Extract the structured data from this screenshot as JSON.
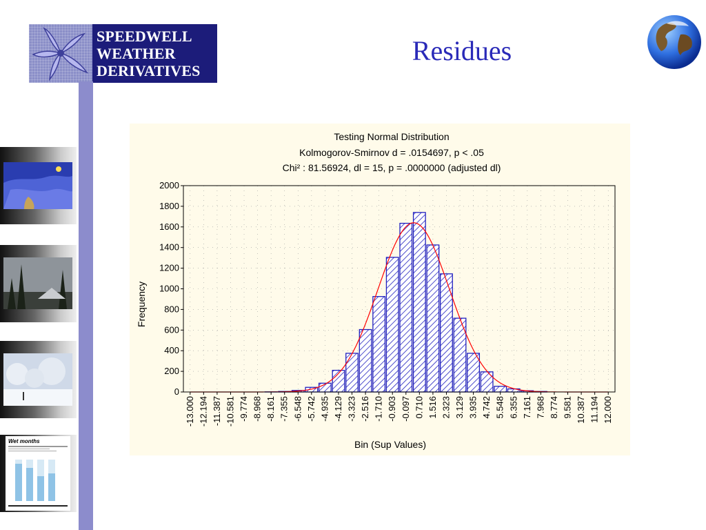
{
  "logo": {
    "lines": [
      "SPEEDWELL",
      "WEATHER",
      "DERIVATIVES"
    ]
  },
  "slide": {
    "title": "Residues"
  },
  "sidebar": {
    "thumbnails": [
      {
        "name": "weather-map"
      },
      {
        "name": "forest-clouds"
      },
      {
        "name": "snowy-trees"
      },
      {
        "name": "wet-months-chart",
        "caption": "Wet months"
      }
    ]
  },
  "chart_data": {
    "type": "bar",
    "title_lines": [
      "Testing Normal Distribution",
      "Kolmogorov-Smirnov d = .0154697, p < .05",
      "Chi² : 81.56924, dl = 15, p = .0000000 (adjusted dl)"
    ],
    "xlabel": "Bin (Sup Values)",
    "ylabel": "Frequency",
    "ylim": [
      0,
      2000
    ],
    "yticks": [
      0,
      200,
      400,
      600,
      800,
      1000,
      1200,
      1400,
      1600,
      1800,
      2000
    ],
    "categories": [
      "-13.000",
      "-12.194",
      "-11.387",
      "-10.581",
      "-9.774",
      "-8.968",
      "-8.161",
      "-7.355",
      "-6.548",
      "-5.742",
      "-4.935",
      "-4.129",
      "-3.323",
      "-2.516",
      "-1.710",
      "-0.903",
      "-0.097",
      "0.710",
      "1.516",
      "2.323",
      "3.129",
      "3.935",
      "4.742",
      "5.548",
      "6.355",
      "7.161",
      "7.968",
      "8.774",
      "9.581",
      "10.387",
      "11.194",
      "12.000"
    ],
    "values": [
      0,
      0,
      0,
      0,
      0,
      0,
      1,
      5,
      15,
      45,
      85,
      210,
      375,
      605,
      925,
      1305,
      1635,
      1740,
      1425,
      1145,
      715,
      375,
      195,
      55,
      30,
      12,
      5,
      0,
      0,
      0,
      0,
      0
    ],
    "fit_curve": "normal",
    "grid": true,
    "colors": {
      "bar_edge": "#1f1fbf",
      "hatch": "#1f1fbf",
      "curve": "#ff0000"
    }
  }
}
